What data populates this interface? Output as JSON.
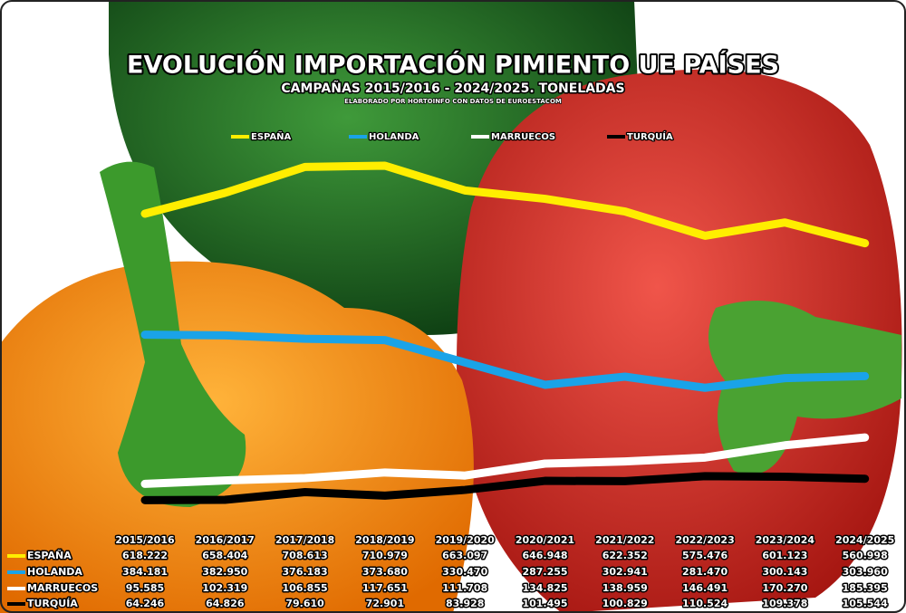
{
  "chart_data": {
    "type": "line",
    "title": "EVOLUCIÓN IMPORTACIÓN PIMIENTO UE PAÍSES",
    "subtitle": "CAMPAÑAS 2015/2016 - 2024/2025. TONELADAS",
    "source": "ELABORADO POR HORTOINFO CON DATOS DE EUROESTACOM",
    "categories": [
      "2015/2016",
      "2016/2017",
      "2017/2018",
      "2018/2019",
      "2019/2020",
      "2020/2021",
      "2021/2022",
      "2022/2023",
      "2023/2024",
      "2024/2025"
    ],
    "series": [
      {
        "name": "ESPAÑA",
        "color": "#ffee00",
        "values": [
          618222,
          658404,
          708613,
          710979,
          663097,
          646948,
          622352,
          575476,
          601123,
          560998
        ],
        "value_labels": [
          "618.222",
          "658.404",
          "708.613",
          "710.979",
          "663.097",
          "646.948",
          "622.352",
          "575.476",
          "601.123",
          "560.998"
        ]
      },
      {
        "name": "HOLANDA",
        "color": "#1aa3e8",
        "values": [
          384181,
          382950,
          376183,
          373680,
          330470,
          287255,
          302941,
          281470,
          300143,
          303960
        ],
        "value_labels": [
          "384.181",
          "382.950",
          "376.183",
          "373.680",
          "330.470",
          "287.255",
          "302.941",
          "281.470",
          "300.143",
          "303.960"
        ]
      },
      {
        "name": "MARRUECOS",
        "color": "#ffffff",
        "values": [
          95585,
          102319,
          106855,
          117651,
          111708,
          134825,
          138959,
          146491,
          170270,
          185395
        ],
        "value_labels": [
          "95.585",
          "102.319",
          "106.855",
          "117.651",
          "111.708",
          "134.825",
          "138.959",
          "146.491",
          "170.270",
          "185.395"
        ]
      },
      {
        "name": "TURQUÍA",
        "color": "#000000",
        "values": [
          64246,
          64826,
          79610,
          72901,
          83928,
          101495,
          100829,
          110524,
          109378,
          105544
        ],
        "value_labels": [
          "64.246",
          "64.826",
          "79.610",
          "72.901",
          "83.928",
          "101.495",
          "100.829",
          "110.524",
          "109.378",
          "105.544"
        ]
      }
    ],
    "legend": "top"
  }
}
